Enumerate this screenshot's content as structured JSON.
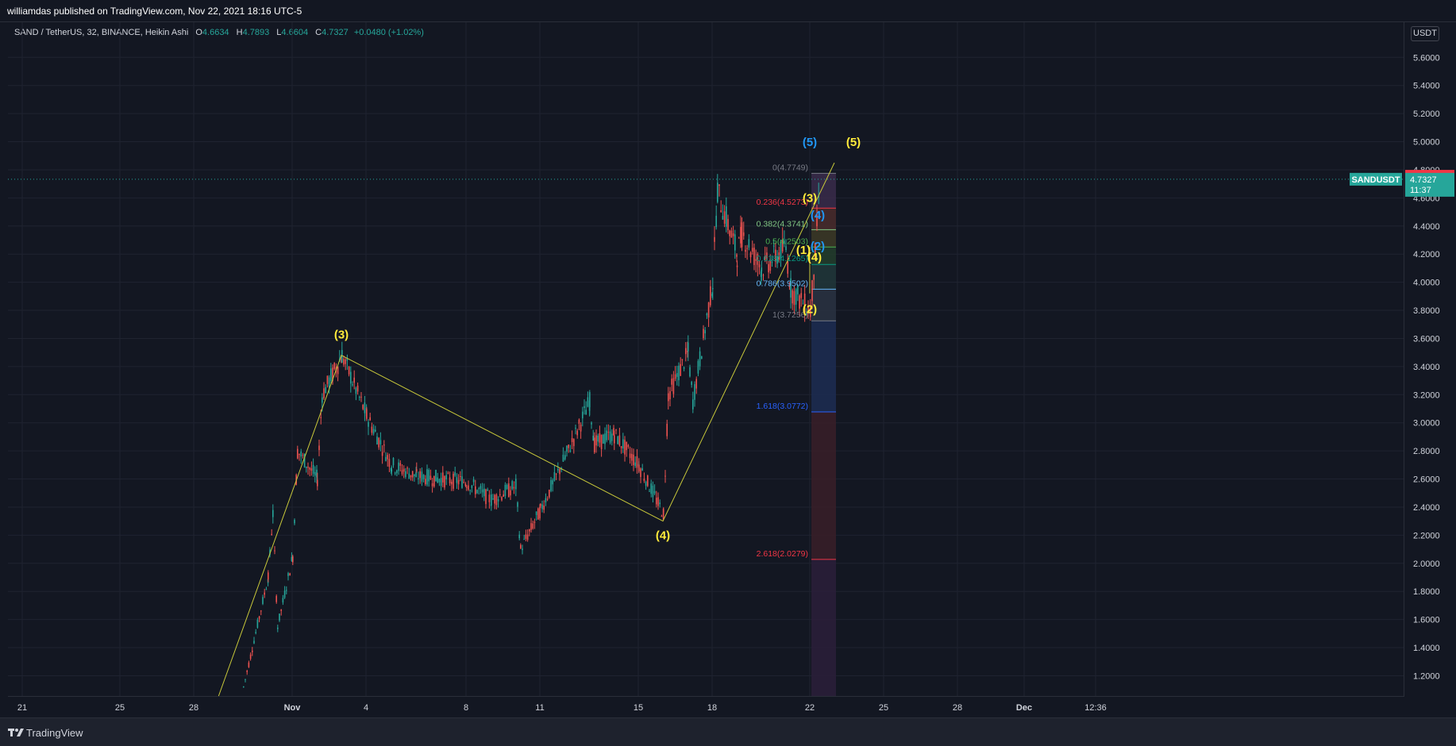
{
  "header": {
    "published": "williamdas published on TradingView.com, Nov 22, 2021 18:16 UTC-5"
  },
  "legend": {
    "symbol": "SAND / TetherUS, 32, BINANCE, Heikin Ashi",
    "open_label": "O",
    "open": "4.6634",
    "high_label": "H",
    "high": "4.7893",
    "low_label": "L",
    "low": "4.6604",
    "close_label": "C",
    "close": "4.7327",
    "change": "+0.0480 (+1.02%)"
  },
  "axis": {
    "unit": "USDT"
  },
  "footer": {
    "brand": "TradingView"
  },
  "chart_data": {
    "type": "candlestick",
    "chart_style": "Heikin Ashi",
    "ylim": [
      1.05,
      5.85
    ],
    "y_ticks": [
      "1.2000",
      "1.4000",
      "1.6000",
      "1.8000",
      "2.0000",
      "2.2000",
      "2.4000",
      "2.6000",
      "2.8000",
      "3.0000",
      "3.2000",
      "3.4000",
      "3.6000",
      "3.8000",
      "4.0000",
      "4.2000",
      "4.4000",
      "4.6000",
      "4.8000",
      "5.0000",
      "5.2000",
      "5.4000",
      "5.6000"
    ],
    "x_ticks": [
      "21",
      "25",
      "28",
      "Nov",
      "4",
      "8",
      "11",
      "15",
      "18",
      "22",
      "25",
      "28",
      "Dec",
      "12:36"
    ],
    "colors": {
      "up": "#26a69a",
      "down": "#ef5350",
      "wave": "#ffeb3b",
      "wave_line": "#c9c93a",
      "bg": "#131722"
    },
    "price_line": {
      "label": "SANDUSDT",
      "value": 4.7327,
      "countdown": "11:37",
      "color": "#26a69a"
    },
    "high_tag": {
      "value": 4.7541,
      "color": "#f23645"
    },
    "price_path": [
      [
        "Oct 30",
        1.12
      ],
      [
        "Oct 31",
        1.9
      ],
      [
        "Oct 31",
        2.35
      ],
      [
        "Oct 31",
        1.55
      ],
      [
        "Nov 1",
        2.05
      ],
      [
        "Nov 1",
        2.8
      ],
      [
        "Nov 2",
        2.6
      ],
      [
        "Nov 2",
        3.2
      ],
      [
        "Nov 3",
        3.48
      ],
      [
        "Nov 4",
        3.05
      ],
      [
        "Nov 5",
        2.7
      ],
      [
        "Nov 6",
        2.62
      ],
      [
        "Nov 8",
        2.58
      ],
      [
        "Nov 9",
        2.45
      ],
      [
        "Nov 10",
        2.55
      ],
      [
        "Nov 10",
        2.1
      ],
      [
        "Nov 11",
        2.38
      ],
      [
        "Nov 12",
        2.75
      ],
      [
        "Nov 13",
        3.15
      ],
      [
        "Nov 13",
        2.85
      ],
      [
        "Nov 14",
        2.92
      ],
      [
        "Nov 15",
        2.7
      ],
      [
        "Nov 16",
        2.35
      ],
      [
        "Nov 16",
        3.2
      ],
      [
        "Nov 17",
        3.5
      ],
      [
        "Nov 17",
        3.15
      ],
      [
        "Nov 18",
        4.0
      ],
      [
        "Nov 18",
        4.65
      ],
      [
        "Nov 19",
        4.2
      ],
      [
        "Nov 19",
        4.35
      ],
      [
        "Nov 20",
        4.1
      ],
      [
        "Nov 21",
        4.25
      ],
      [
        "Nov 21",
        3.95
      ],
      [
        "Nov 22",
        3.8
      ],
      [
        "Nov 22",
        4.2
      ],
      [
        "Nov 22",
        4.75
      ]
    ],
    "wave_lines": [
      [
        [
          "Oct 29",
          1.05
        ],
        [
          "Nov 3",
          3.48
        ],
        [
          "Nov 16",
          2.3
        ],
        [
          "Nov 23",
          4.85
        ]
      ],
      [
        [
          "Nov 22",
          3.92
        ],
        [
          "Nov 22",
          4.25
        ]
      ]
    ],
    "wave_labels": [
      {
        "text": "(3)",
        "x": "Nov 3",
        "y": 3.6,
        "color": "#ffeb3b"
      },
      {
        "text": "(4)",
        "x": "Nov 16",
        "y": 2.17,
        "color": "#ffeb3b"
      },
      {
        "text": "(5)",
        "x": "Nov 23",
        "y": 4.97,
        "color": "#ffeb3b"
      },
      {
        "text": "(5)",
        "x": "Nov 22",
        "y": 4.97,
        "color": "#2196f3"
      },
      {
        "text": "(3)",
        "x": "Nov 22",
        "y": 4.57,
        "color": "#ffeb3b"
      },
      {
        "text": "(1)",
        "x": "Nov 22",
        "y": 4.2,
        "color": "#ffeb3b"
      },
      {
        "text": "(4)",
        "x": "Nov 22",
        "y": 4.15,
        "color": "#ffeb3b"
      },
      {
        "text": "(2)",
        "x": "Nov 22",
        "y": 3.78,
        "color": "#ffeb3b"
      },
      {
        "text": "(4)",
        "x": "Nov 22",
        "y": 4.45,
        "color": "#2196f3"
      },
      {
        "text": "(2)",
        "x": "Nov 22",
        "y": 4.23,
        "color": "#2196f3"
      }
    ],
    "fib": {
      "x_start": "Nov 22",
      "x_end": "Nov 23",
      "levels": [
        {
          "label": "0(4.7749)",
          "value": 4.7749,
          "color": "#787b86",
          "fill": "#3a2b4a"
        },
        {
          "label": "0.236(4.5273)",
          "value": 4.5273,
          "color": "#f23645",
          "fill": "#4a2b2b"
        },
        {
          "label": "0.382(4.3741)",
          "value": 4.3741,
          "color": "#81c784",
          "fill": "#3d3a26"
        },
        {
          "label": "0.5(4.2503)",
          "value": 4.2503,
          "color": "#4caf50",
          "fill": "#233d2b"
        },
        {
          "label": "0.618(4.1265)",
          "value": 4.1265,
          "color": "#089981",
          "fill": "#21373a"
        },
        {
          "label": "0.786(3.9502)",
          "value": 3.9502,
          "color": "#64b5f6",
          "fill": "#2a3342"
        },
        {
          "label": "1(3.7256)",
          "value": 3.7256,
          "color": "#787b86",
          "fill": "#1d2d52"
        },
        {
          "label": "1.618(3.0772)",
          "value": 3.0772,
          "color": "#2962ff",
          "fill": "#3a1f28"
        },
        {
          "label": "2.618(2.0279)",
          "value": 2.0279,
          "color": "#f23645",
          "fill": "#2c1e3a"
        }
      ]
    }
  }
}
